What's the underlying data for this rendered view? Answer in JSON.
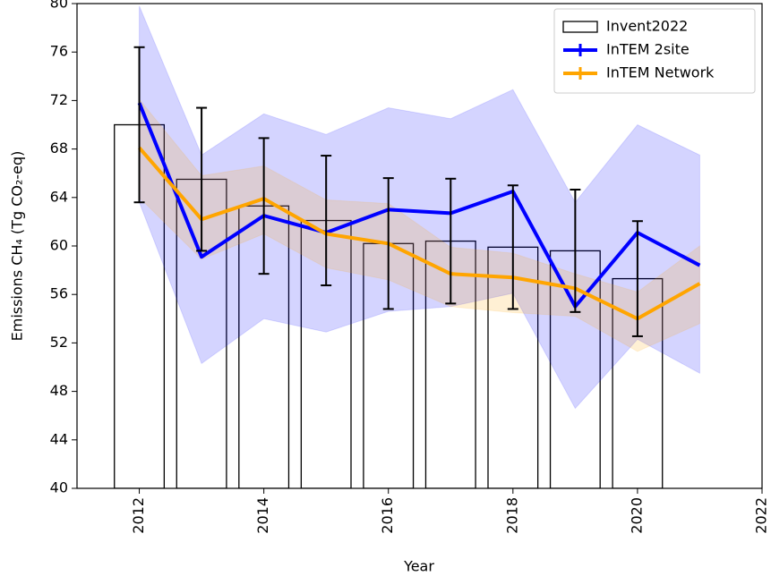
{
  "chart_data": {
    "type": "combo",
    "x_label": "Year",
    "y_label": "Emissions CH₄  (Tg CO₂-eq)",
    "xlim": [
      2011,
      2022
    ],
    "xticks": [
      2012,
      2014,
      2016,
      2018,
      2020,
      2022
    ],
    "ylim": [
      40,
      80
    ],
    "yticks": [
      40,
      44,
      48,
      52,
      56,
      60,
      64,
      68,
      72,
      76,
      80
    ],
    "legend": "upper right",
    "series": [
      {
        "name": "Invent2022",
        "type": "bar",
        "color": "#000000",
        "x": [
          2012,
          2013,
          2014,
          2015,
          2016,
          2017,
          2018,
          2019,
          2020
        ],
        "values": [
          70.0,
          65.5,
          63.3,
          62.1,
          60.2,
          60.4,
          59.9,
          59.6,
          57.3
        ],
        "errors": [
          6.4,
          5.9,
          5.6,
          5.35,
          5.4,
          5.15,
          5.1,
          5.05,
          4.75
        ]
      },
      {
        "name": "InTEM 2site",
        "type": "line",
        "color": "#0000ff",
        "x": [
          2012,
          2013,
          2014,
          2015,
          2016,
          2017,
          2018,
          2019,
          2020,
          2021
        ],
        "values": [
          71.8,
          59.1,
          62.5,
          61.1,
          63.0,
          62.7,
          64.5,
          55.0,
          61.1,
          58.4
        ],
        "upper": [
          79.8,
          67.5,
          70.9,
          69.2,
          71.4,
          70.5,
          72.9,
          63.6,
          70.0,
          67.5
        ],
        "lower": [
          63.6,
          50.3,
          54.0,
          52.9,
          54.6,
          55.0,
          56.1,
          46.6,
          52.3,
          49.5
        ]
      },
      {
        "name": "InTEM Network",
        "type": "line",
        "color": "#ffa500",
        "x": [
          2012,
          2013,
          2014,
          2015,
          2016,
          2017,
          2018,
          2019,
          2020,
          2021
        ],
        "values": [
          68.1,
          62.2,
          63.9,
          61.0,
          60.2,
          57.7,
          57.4,
          56.5,
          54.0,
          56.9
        ],
        "upper": [
          72.1,
          65.8,
          66.6,
          63.8,
          63.5,
          59.9,
          59.4,
          57.7,
          56.2,
          60.0
        ],
        "lower": [
          64.0,
          58.9,
          61.0,
          58.2,
          57.2,
          55.0,
          54.5,
          54.2,
          51.3,
          53.6
        ]
      }
    ]
  }
}
